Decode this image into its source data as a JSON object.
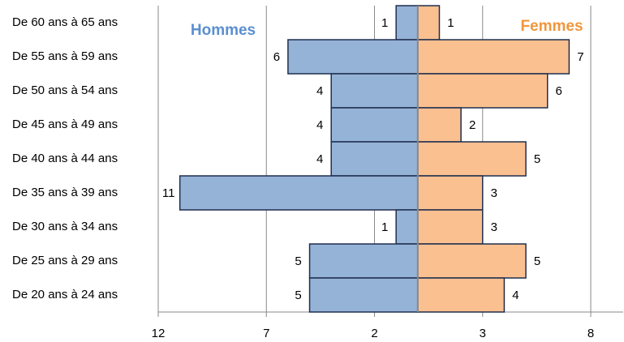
{
  "chart_data": {
    "type": "pyramid",
    "categories": [
      "De 60 ans à 65 ans",
      "De 55 ans à 59 ans",
      "De 50 ans à 54 ans",
      "De 45 ans à 49 ans",
      "De 40 ans à 44 ans",
      "De 35 ans à 39 ans",
      "De 30 ans à 34 ans",
      "De 25 ans à 29 ans",
      "De 20 ans à 24 ans"
    ],
    "series": [
      {
        "name": "Hommes",
        "color": "#95b3d7",
        "side": "left",
        "values": [
          1,
          6,
          4,
          4,
          4,
          11,
          1,
          5,
          5
        ]
      },
      {
        "name": "Femmes",
        "color": "#fac090",
        "side": "right",
        "values": [
          1,
          7,
          6,
          2,
          5,
          3,
          3,
          5,
          4
        ]
      }
    ],
    "legend_colors": [
      "#5b8fd0",
      "#f0963c"
    ],
    "xlim": [
      -12,
      9.5
    ],
    "xticks": [
      {
        "value": -12,
        "label": "12"
      },
      {
        "value": -7,
        "label": "7"
      },
      {
        "value": -2,
        "label": "2"
      },
      3,
      8
    ],
    "grid": true
  }
}
